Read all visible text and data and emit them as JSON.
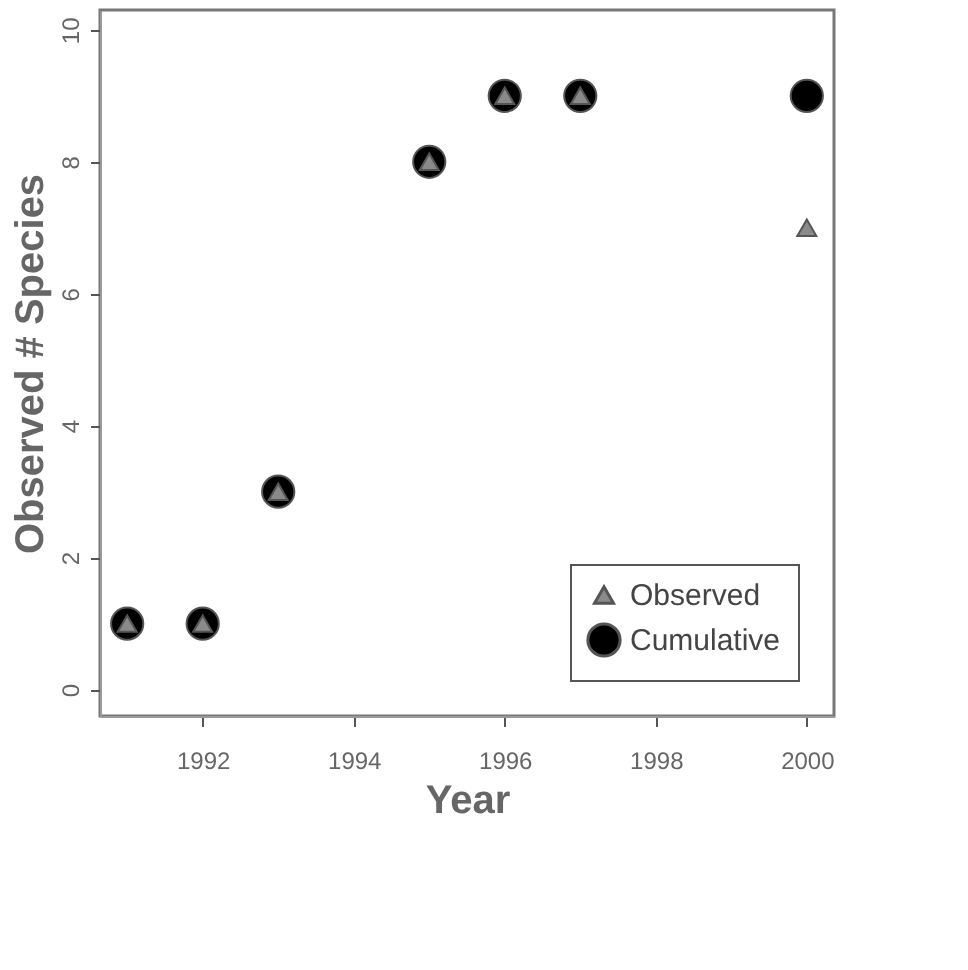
{
  "chart_data": {
    "type": "scatter",
    "xlabel": "Year",
    "ylabel": "Observed # Species",
    "x": [
      1991,
      1992,
      1993,
      1995,
      1996,
      1997,
      2000
    ],
    "series": [
      {
        "name": "Cumulative",
        "color": "#000000",
        "marker": "circle",
        "values": [
          1,
          1,
          3,
          8,
          9,
          9,
          9
        ]
      },
      {
        "name": "Observed",
        "color": "#8a8a8a",
        "marker": "triangle",
        "values": [
          1,
          1,
          3,
          8,
          9,
          9,
          7
        ]
      }
    ],
    "xlim": [
      1990.64,
      2000.36
    ],
    "xticks": [
      1992,
      1994,
      1996,
      1998,
      2000
    ],
    "ylim": [
      -0.4,
      10.3
    ],
    "yticks": [
      0,
      2,
      4,
      6,
      8,
      10
    ],
    "grid": false,
    "legend": "bottom right"
  }
}
